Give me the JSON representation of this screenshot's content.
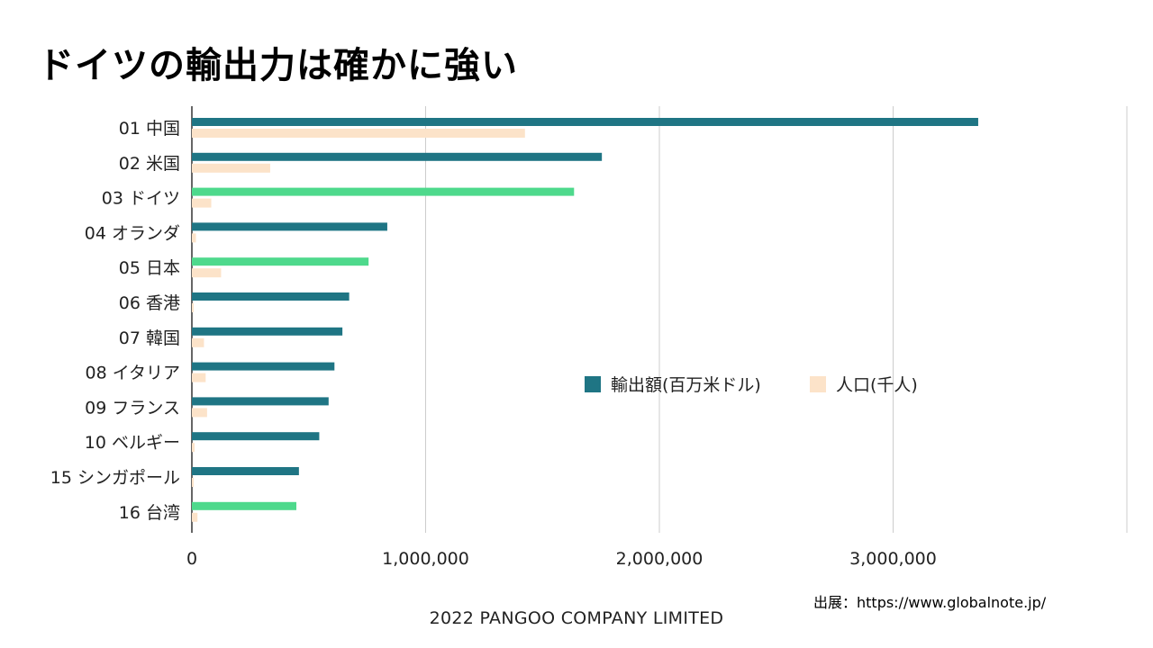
{
  "title": "ドイツの輸出力は確かに強い",
  "source": "出展：https://www.globalnote.jp/",
  "footer": "2022 PANGOO COMPANY LIMITED",
  "colors": {
    "export": "#1F7584",
    "export_highlight": "#4ED98C",
    "population": "#FCE3C9",
    "grid": "#CCCCCC",
    "axis": "#333333"
  },
  "chart_data": {
    "type": "bar",
    "orientation": "horizontal",
    "categories": [
      "01 中国",
      "02 米国",
      "03 ドイツ",
      "04 オランダ",
      "05 日本",
      "06 香港",
      "07 韓国",
      "08 イタリア",
      "09 フランス",
      "10 ベルギー",
      "15 シンガポール",
      "16 台湾"
    ],
    "highlighted": [
      "03 ドイツ",
      "05 日本",
      "16 台湾"
    ],
    "series": [
      {
        "name": "輸出額(百万米ドル)",
        "values": [
          3364000,
          1754000,
          1635000,
          836000,
          756000,
          673000,
          644000,
          610000,
          585000,
          545000,
          458000,
          447000
        ]
      },
      {
        "name": "人口(千人)",
        "values": [
          1425000,
          335000,
          83000,
          17500,
          125000,
          7300,
          51800,
          59000,
          65000,
          11600,
          5900,
          23900
        ]
      }
    ],
    "xticks": [
      "0",
      "1,000,000",
      "2,000,000",
      "3,000,000"
    ],
    "xlim": [
      0,
      4000000
    ],
    "grid": true,
    "legend_position": "right"
  }
}
